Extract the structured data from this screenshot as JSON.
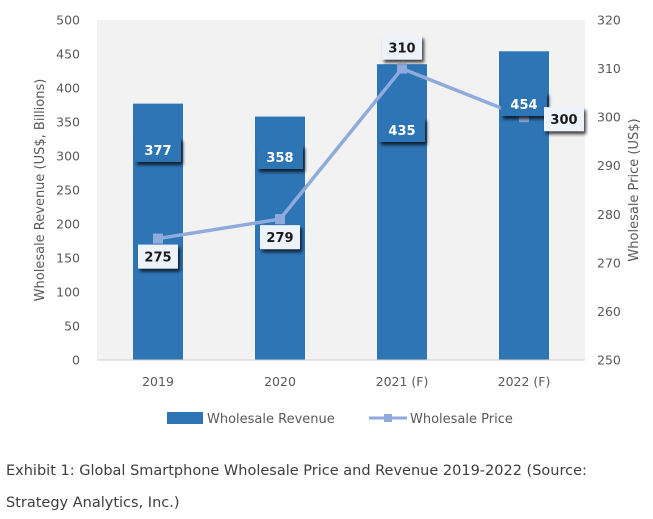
{
  "chart_data": {
    "type": "bar",
    "categories": [
      "2019",
      "2020",
      "2021 (F)",
      "2022 (F)"
    ],
    "series": [
      {
        "name": "Wholesale Revenue",
        "type": "bar",
        "axis": "left",
        "values": [
          377,
          358,
          435,
          454
        ],
        "color": "#2e75b6"
      },
      {
        "name": "Wholesale Price",
        "type": "line",
        "axis": "right",
        "values": [
          275,
          279,
          310,
          300
        ],
        "color": "#8faadc"
      }
    ],
    "title": "",
    "xlabel": "",
    "ylabel": "Wholesale Revenue (US$, Billions)",
    "y2label": "Wholesale Price (US$)",
    "ylim": [
      0,
      500
    ],
    "y2lim": [
      250,
      320
    ],
    "yticks": [
      0,
      50,
      100,
      150,
      200,
      250,
      300,
      350,
      400,
      450,
      500
    ],
    "y2ticks": [
      250,
      260,
      270,
      280,
      290,
      300,
      310,
      320
    ],
    "grid": false,
    "legend": "bottom",
    "plot_background": "#f2f2f2"
  },
  "caption": "Exhibit 1: Global Smartphone Wholesale Price and Revenue 2019-2022 (Source: Strategy Analytics, Inc.)"
}
